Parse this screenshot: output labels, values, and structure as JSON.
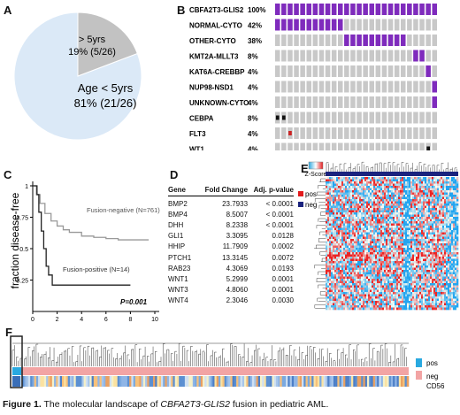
{
  "panels": {
    "A": "A",
    "B": "B",
    "C": "C",
    "D": "D",
    "E": "E",
    "F": "F"
  },
  "pie": {
    "large_label_1": "Age < 5yrs",
    "large_label_2": "81% (21/26)",
    "small_label_1": "> 5yrs",
    "small_label_2": "19% (5/26)",
    "large_fraction": 0.8077,
    "large_color": "#dbe9f7",
    "small_color": "#c2c2c2"
  },
  "oncoprint": {
    "columns": 26,
    "fill_color": "#7f2bbd",
    "empty_color": "#c8c8c8",
    "rows": [
      {
        "label": "CBFA2T3-GLIS2",
        "pct": "100%",
        "color": "#7f2bbd",
        "cols": [
          0,
          1,
          2,
          3,
          4,
          5,
          6,
          7,
          8,
          9,
          10,
          11,
          12,
          13,
          14,
          15,
          16,
          17,
          18,
          19,
          20,
          21,
          22,
          23,
          24,
          25
        ]
      },
      {
        "label": "NORMAL-CYTO",
        "pct": "42%",
        "color": "#7f2bbd",
        "cols": [
          0,
          1,
          2,
          3,
          4,
          5,
          6,
          7,
          8,
          9,
          10
        ]
      },
      {
        "label": "OTHER-CYTO",
        "pct": "38%",
        "color": "#7f2bbd",
        "cols": [
          11,
          12,
          13,
          14,
          15,
          16,
          17,
          18,
          19,
          20
        ]
      },
      {
        "label": "KMT2A-MLLT3",
        "pct": "8%",
        "color": "#7f2bbd",
        "cols": [
          22,
          23
        ]
      },
      {
        "label": "KAT6A-CREBBP",
        "pct": "4%",
        "color": "#7f2bbd",
        "cols": [
          24
        ]
      },
      {
        "label": "NUP98-NSD1",
        "pct": "4%",
        "color": "#7f2bbd",
        "cols": [
          25
        ]
      },
      {
        "label": "UNKNOWN-CYTO",
        "pct": "4%",
        "color": "#7f2bbd",
        "cols": [
          25
        ]
      },
      {
        "label": "CEBPA",
        "pct": "8%",
        "color": "#111111",
        "cols": [
          0,
          1
        ]
      },
      {
        "label": "FLT3",
        "pct": "4%",
        "color": "#cc2222",
        "cols": [
          2
        ]
      },
      {
        "label": "WT1",
        "pct": "4%",
        "color": "#111111",
        "cols": [
          24
        ]
      }
    ]
  },
  "km": {
    "ylabel": "fraction disease-free",
    "yticks": [
      "1",
      "0.75",
      "0.5",
      "0.25"
    ],
    "xticks": [
      "0",
      "2",
      "4",
      "6",
      "8",
      "10"
    ],
    "neg_label": "Fusion-negative (N=761)",
    "pos_label": "Fusion-positive (N=14)",
    "pvalue": "P=0.001"
  },
  "chart_data": {
    "type": "line",
    "xlabel": "",
    "ylabel": "fraction disease-free",
    "xlim": [
      0,
      10
    ],
    "ylim": [
      0,
      1
    ],
    "series": [
      {
        "name": "Fusion-negative (N=761)",
        "color": "#999999",
        "x": [
          0,
          0.3,
          0.6,
          1,
          1.5,
          2,
          2.5,
          3,
          4,
          5,
          6,
          7,
          8,
          9.5
        ],
        "y": [
          1,
          0.93,
          0.86,
          0.78,
          0.72,
          0.68,
          0.65,
          0.63,
          0.6,
          0.59,
          0.58,
          0.57,
          0.57,
          0.57
        ]
      },
      {
        "name": "Fusion-positive (N=14)",
        "color": "#222222",
        "x": [
          0,
          0.35,
          0.5,
          0.7,
          0.9,
          1.1,
          1.3,
          1.6,
          3,
          6,
          8
        ],
        "y": [
          1,
          0.93,
          0.79,
          0.64,
          0.5,
          0.36,
          0.29,
          0.21,
          0.21,
          0.21,
          0.21
        ]
      }
    ]
  },
  "table": {
    "headers": [
      "Gene",
      "Fold Change",
      "Adj. p-value"
    ],
    "rows": [
      [
        "BMP2",
        "23.7933",
        "< 0.0001"
      ],
      [
        "BMP4",
        "8.5007",
        "< 0.0001"
      ],
      [
        "DHH",
        "8.2338",
        "< 0.0001"
      ],
      [
        "GLI1",
        "3.3095",
        "0.0128"
      ],
      [
        "HHIP",
        "11.7909",
        "0.0002"
      ],
      [
        "PTCH1",
        "13.3145",
        "0.0072"
      ],
      [
        "RAB23",
        "4.3069",
        "0.0193"
      ],
      [
        "WNT1",
        "5.2999",
        "0.0001"
      ],
      [
        "WNT3",
        "4.8060",
        "0.0001"
      ],
      [
        "WNT4",
        "2.3046",
        "0.0030"
      ]
    ]
  },
  "heatmap_e": {
    "zscore_label": "Z-Score",
    "pos_label": "pos",
    "neg_label": "neg",
    "pos_color": "#e31a1c",
    "neg_color": "#1a237e"
  },
  "heatmap_f": {
    "pos_label": "pos",
    "neg_label": "neg",
    "cd56_label": "CD56",
    "pos_color": "#29a9e0",
    "neg_color": "#f2a4a4"
  },
  "caption": {
    "prefix": "Figure 1.",
    "text_1": " The molecular landscape of ",
    "italic": "CBFA2T3-GLIS2",
    "text_2": " fusion in pediatric AML."
  }
}
